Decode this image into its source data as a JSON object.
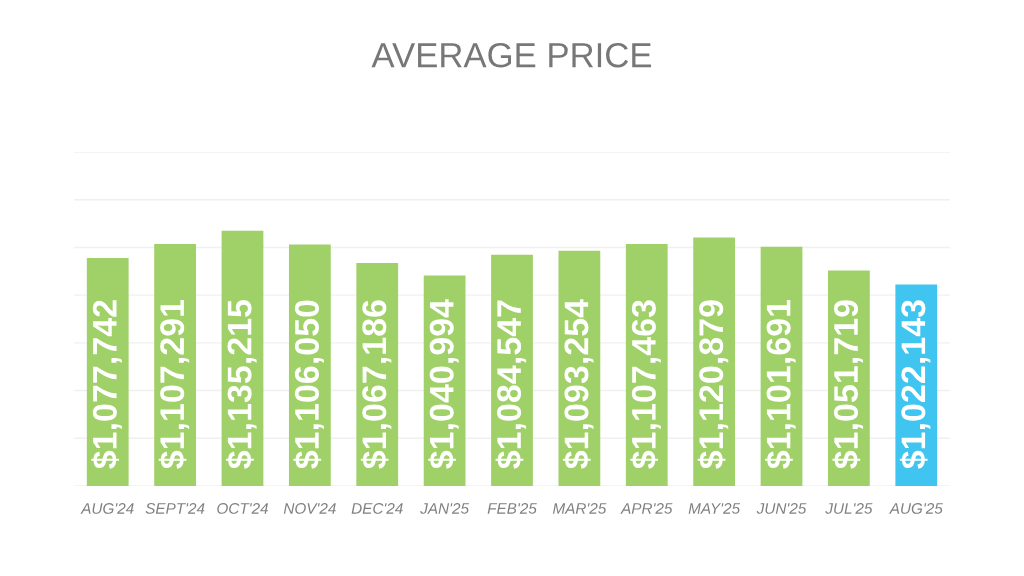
{
  "chart_data": {
    "type": "bar",
    "title": "AVERAGE PRICE",
    "categories": [
      "AUG'24",
      "SEPT'24",
      "OCT'24",
      "NOV'24",
      "DEC'24",
      "JAN'25",
      "FEB'25",
      "MAR'25",
      "APR'25",
      "MAY'25",
      "JUN'25",
      "JUL'25",
      "AUG'25"
    ],
    "values": [
      1077742,
      1107291,
      1135215,
      1106050,
      1067186,
      1040994,
      1084547,
      1093254,
      1107463,
      1120879,
      1101691,
      1051719,
      1022143
    ],
    "colors": [
      "#a0d068",
      "#a0d068",
      "#a0d068",
      "#a0d068",
      "#a0d068",
      "#a0d068",
      "#a0d068",
      "#a0d068",
      "#a0d068",
      "#a0d068",
      "#a0d068",
      "#a0d068",
      "#40c4f0"
    ],
    "value_labels": [
      "$1,077,742",
      "$1,107,291",
      "$1,135,215",
      "$1,106,050",
      "$1,067,186",
      "$1,040,994",
      "$1,084,547",
      "$1,093,254",
      "$1,107,463",
      "$1,120,879",
      "$1,101,691",
      "$1,051,719",
      "$1,022,143"
    ],
    "ylim": [
      600000,
      1300000
    ],
    "yticks": [
      {
        "value": 600000,
        "label": null
      },
      {
        "value": 700000,
        "label": null
      },
      {
        "value": 800000,
        "label": null
      },
      {
        "value": 900000,
        "label": null
      },
      {
        "value": 1000000,
        "label": null
      },
      {
        "value": 1100000,
        "label": null
      },
      {
        "value": 1200000,
        "label": null
      },
      {
        "value": 1300000,
        "label": null
      }
    ],
    "grid": "y",
    "tick_labels": "x"
  }
}
